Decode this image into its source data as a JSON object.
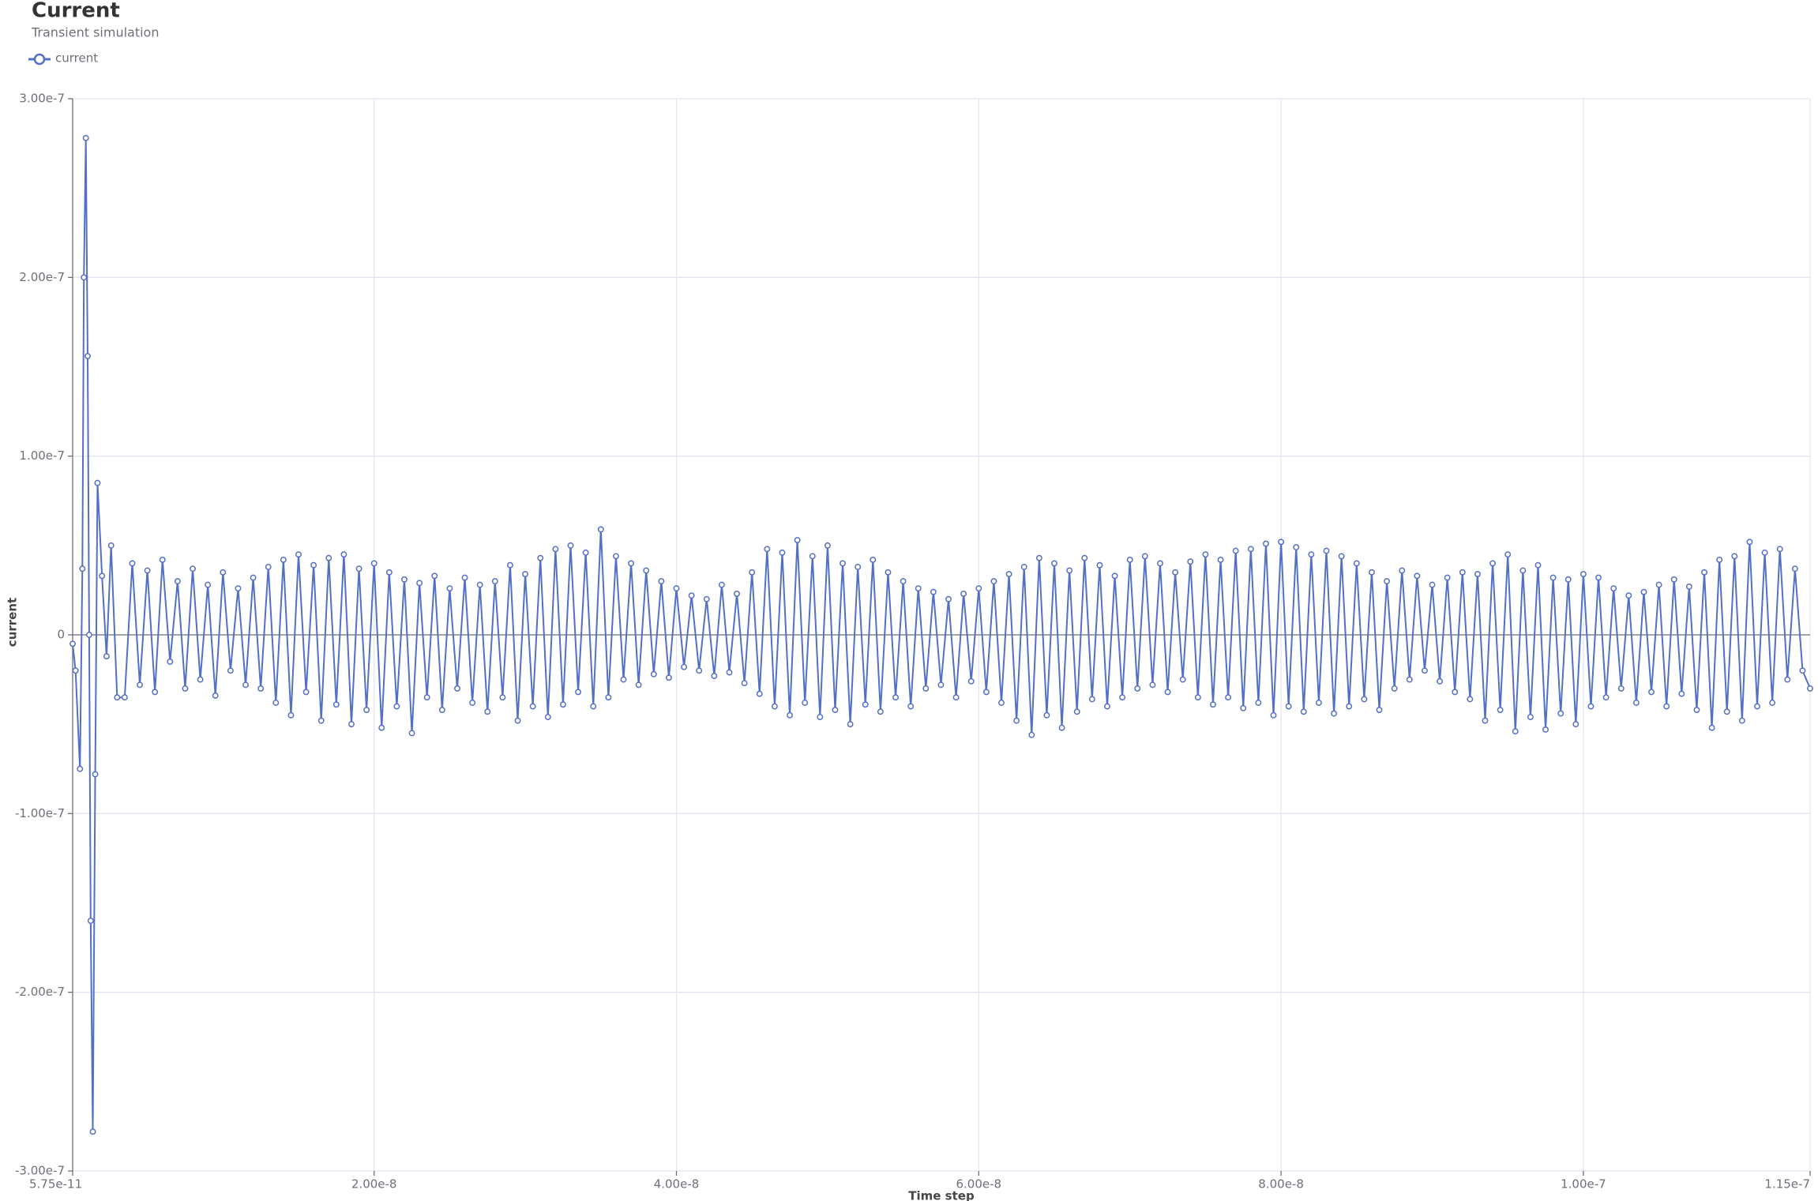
{
  "chart_data": {
    "type": "line",
    "title": "Current",
    "subtitle": "Transient simulation",
    "x_label": "Time step",
    "y_label": "current",
    "xlim": [
      5.75e-11,
      1.15e-07
    ],
    "xticks": [
      {
        "value": 5.75e-11,
        "label": "5.75e-11"
      },
      {
        "value": 2e-08,
        "label": "2.00e-8"
      },
      {
        "value": 4e-08,
        "label": "4.00e-8"
      },
      {
        "value": 6e-08,
        "label": "6.00e-8"
      },
      {
        "value": 8e-08,
        "label": "8.00e-8"
      },
      {
        "value": 1e-07,
        "label": "1.00e-7"
      },
      {
        "value": 1.15e-07,
        "label": "1.15e-7"
      }
    ],
    "ylim": [
      -3e-07,
      3e-07
    ],
    "yticks": [
      {
        "value": -3e-07,
        "label": "-3.00e-7"
      },
      {
        "value": -2e-07,
        "label": "-2.00e-7"
      },
      {
        "value": -1e-07,
        "label": "-1.00e-7"
      },
      0,
      {
        "value": 1e-07,
        "label": "1.00e-7"
      },
      {
        "value": 2e-07,
        "label": "2.00e-7"
      },
      {
        "value": 3e-07,
        "label": "3.00e-7"
      }
    ],
    "grid": true,
    "x": [
      5.75e-11,
      2.5e-10,
      5.4e-10,
      7e-10,
      8e-10,
      9.3e-10,
      1.05e-09,
      1.15e-09,
      1.25e-09,
      1.39e-09,
      1.55e-09,
      1.7e-09,
      2e-09,
      2.3e-09,
      2.6e-09,
      3e-09,
      3.5e-09,
      4e-09,
      4.5e-09,
      5e-09,
      5.5e-09,
      6e-09,
      6.5e-09,
      7e-09,
      7.5e-09,
      8e-09,
      8.5e-09,
      9e-09,
      9.5e-09,
      1e-08,
      1.05e-08,
      1.1e-08,
      1.15e-08,
      1.2e-08,
      1.25e-08,
      1.3e-08,
      1.35e-08,
      1.4e-08,
      1.45e-08,
      1.5e-08,
      1.55e-08,
      1.6e-08,
      1.65e-08,
      1.7e-08,
      1.75e-08,
      1.8e-08,
      1.85e-08,
      1.9e-08,
      1.95e-08,
      2e-08,
      2.05e-08,
      2.1e-08,
      2.15e-08,
      2.2e-08,
      2.25e-08,
      2.3e-08,
      2.35e-08,
      2.4e-08,
      2.45e-08,
      2.5e-08,
      2.55e-08,
      2.6e-08,
      2.65e-08,
      2.7e-08,
      2.75e-08,
      2.8e-08,
      2.85e-08,
      2.9e-08,
      2.95e-08,
      3e-08,
      3.05e-08,
      3.1e-08,
      3.15e-08,
      3.2e-08,
      3.25e-08,
      3.3e-08,
      3.35e-08,
      3.4e-08,
      3.45e-08,
      3.5e-08,
      3.55e-08,
      3.6e-08,
      3.65e-08,
      3.7e-08,
      3.75e-08,
      3.8e-08,
      3.85e-08,
      3.9e-08,
      3.95e-08,
      4e-08,
      4.05e-08,
      4.1e-08,
      4.15e-08,
      4.2e-08,
      4.25e-08,
      4.3e-08,
      4.35e-08,
      4.4e-08,
      4.45e-08,
      4.5e-08,
      4.55e-08,
      4.6e-08,
      4.65e-08,
      4.7e-08,
      4.75e-08,
      4.8e-08,
      4.85e-08,
      4.9e-08,
      4.95e-08,
      5e-08,
      5.05e-08,
      5.1e-08,
      5.15e-08,
      5.2e-08,
      5.25e-08,
      5.3e-08,
      5.35e-08,
      5.4e-08,
      5.45e-08,
      5.5e-08,
      5.55e-08,
      5.6e-08,
      5.65e-08,
      5.7e-08,
      5.75e-08,
      5.8e-08,
      5.85e-08,
      5.9e-08,
      5.95e-08,
      6e-08,
      6.05e-08,
      6.1e-08,
      6.15e-08,
      6.2e-08,
      6.25e-08,
      6.3e-08,
      6.35e-08,
      6.4e-08,
      6.45e-08,
      6.5e-08,
      6.55e-08,
      6.6e-08,
      6.65e-08,
      6.7e-08,
      6.75e-08,
      6.8e-08,
      6.85e-08,
      6.9e-08,
      6.95e-08,
      7e-08,
      7.05e-08,
      7.1e-08,
      7.15e-08,
      7.2e-08,
      7.25e-08,
      7.3e-08,
      7.35e-08,
      7.4e-08,
      7.45e-08,
      7.5e-08,
      7.55e-08,
      7.6e-08,
      7.65e-08,
      7.7e-08,
      7.75e-08,
      7.8e-08,
      7.85e-08,
      7.9e-08,
      7.95e-08,
      8e-08,
      8.05e-08,
      8.1e-08,
      8.15e-08,
      8.2e-08,
      8.25e-08,
      8.3e-08,
      8.35e-08,
      8.4e-08,
      8.45e-08,
      8.5e-08,
      8.55e-08,
      8.6e-08,
      8.65e-08,
      8.7e-08,
      8.75e-08,
      8.8e-08,
      8.85e-08,
      8.9e-08,
      8.95e-08,
      9e-08,
      9.05e-08,
      9.1e-08,
      9.15e-08,
      9.2e-08,
      9.25e-08,
      9.3e-08,
      9.35e-08,
      9.4e-08,
      9.45e-08,
      9.5e-08,
      9.55e-08,
      9.6e-08,
      9.65e-08,
      9.7e-08,
      9.75e-08,
      9.8e-08,
      9.85e-08,
      9.9e-08,
      9.95e-08,
      1e-07,
      1.005e-07,
      1.01e-07,
      1.015e-07,
      1.02e-07,
      1.025e-07,
      1.03e-07,
      1.035e-07,
      1.04e-07,
      1.045e-07,
      1.05e-07,
      1.055e-07,
      1.06e-07,
      1.065e-07,
      1.07e-07,
      1.075e-07,
      1.08e-07,
      1.085e-07,
      1.09e-07,
      1.095e-07,
      1.1e-07,
      1.105e-07,
      1.11e-07,
      1.115e-07,
      1.12e-07,
      1.125e-07,
      1.13e-07,
      1.135e-07,
      1.14e-07,
      1.145e-07,
      1.15e-07
    ],
    "series": [
      {
        "name": "current",
        "color": "#5470c6",
        "values": [
          -5e-09,
          -2e-08,
          -7.5e-08,
          3.7e-08,
          2e-07,
          2.78e-07,
          1.56e-07,
          0,
          -1.6e-07,
          -2.78e-07,
          -7.8e-08,
          8.5e-08,
          3.3e-08,
          -1.2e-08,
          5e-08,
          -3.5e-08,
          -3.5e-08,
          4e-08,
          -2.8e-08,
          3.6e-08,
          -3.2e-08,
          4.2e-08,
          -1.5e-08,
          3e-08,
          -3e-08,
          3.7e-08,
          -2.5e-08,
          2.8e-08,
          -3.4e-08,
          3.5e-08,
          -2e-08,
          2.6e-08,
          -2.8e-08,
          3.2e-08,
          -3e-08,
          3.8e-08,
          -3.8e-08,
          4.2e-08,
          -4.5e-08,
          4.5e-08,
          -3.2e-08,
          3.9e-08,
          -4.8e-08,
          4.3e-08,
          -3.9e-08,
          4.5e-08,
          -5e-08,
          3.7e-08,
          -4.2e-08,
          4e-08,
          -5.2e-08,
          3.5e-08,
          -4e-08,
          3.1e-08,
          -5.5e-08,
          2.9e-08,
          -3.5e-08,
          3.3e-08,
          -4.2e-08,
          2.6e-08,
          -3e-08,
          3.2e-08,
          -3.8e-08,
          2.8e-08,
          -4.3e-08,
          3e-08,
          -3.5e-08,
          3.9e-08,
          -4.8e-08,
          3.4e-08,
          -4e-08,
          4.3e-08,
          -4.6e-08,
          4.8e-08,
          -3.9e-08,
          5e-08,
          -3.2e-08,
          4.6e-08,
          -4e-08,
          5.9e-08,
          -3.5e-08,
          4.4e-08,
          -2.5e-08,
          4e-08,
          -2.8e-08,
          3.6e-08,
          -2.2e-08,
          3e-08,
          -2.4e-08,
          2.6e-08,
          -1.8e-08,
          2.2e-08,
          -2e-08,
          2e-08,
          -2.3e-08,
          2.8e-08,
          -2.1e-08,
          2.3e-08,
          -2.7e-08,
          3.5e-08,
          -3.3e-08,
          4.8e-08,
          -4e-08,
          4.6e-08,
          -4.5e-08,
          5.3e-08,
          -3.8e-08,
          4.4e-08,
          -4.6e-08,
          5e-08,
          -4.2e-08,
          4e-08,
          -5e-08,
          3.8e-08,
          -3.9e-08,
          4.2e-08,
          -4.3e-08,
          3.5e-08,
          -3.5e-08,
          3e-08,
          -4e-08,
          2.6e-08,
          -3e-08,
          2.4e-08,
          -2.8e-08,
          2e-08,
          -3.5e-08,
          2.3e-08,
          -2.6e-08,
          2.6e-08,
          -3.2e-08,
          3e-08,
          -3.8e-08,
          3.4e-08,
          -4.8e-08,
          3.8e-08,
          -5.6e-08,
          4.3e-08,
          -4.5e-08,
          4e-08,
          -5.2e-08,
          3.6e-08,
          -4.3e-08,
          4.3e-08,
          -3.6e-08,
          3.9e-08,
          -4e-08,
          3.3e-08,
          -3.5e-08,
          4.2e-08,
          -3e-08,
          4.4e-08,
          -2.8e-08,
          4e-08,
          -3.2e-08,
          3.5e-08,
          -2.5e-08,
          4.1e-08,
          -3.5e-08,
          4.5e-08,
          -3.9e-08,
          4.2e-08,
          -3.5e-08,
          4.7e-08,
          -4.1e-08,
          4.8e-08,
          -3.8e-08,
          5.1e-08,
          -4.5e-08,
          5.2e-08,
          -4e-08,
          4.9e-08,
          -4.3e-08,
          4.5e-08,
          -3.8e-08,
          4.7e-08,
          -4.4e-08,
          4.4e-08,
          -4e-08,
          4e-08,
          -3.6e-08,
          3.5e-08,
          -4.2e-08,
          3e-08,
          -3e-08,
          3.6e-08,
          -2.5e-08,
          3.3e-08,
          -2e-08,
          2.8e-08,
          -2.6e-08,
          3.2e-08,
          -3.2e-08,
          3.5e-08,
          -3.6e-08,
          3.4e-08,
          -4.8e-08,
          4e-08,
          -4.2e-08,
          4.5e-08,
          -5.4e-08,
          3.6e-08,
          -4.6e-08,
          3.9e-08,
          -5.3e-08,
          3.2e-08,
          -4.4e-08,
          3.1e-08,
          -5e-08,
          3.4e-08,
          -4e-08,
          3.2e-08,
          -3.5e-08,
          2.6e-08,
          -3e-08,
          2.2e-08,
          -3.8e-08,
          2.4e-08,
          -3.2e-08,
          2.8e-08,
          -4e-08,
          3.1e-08,
          -3.3e-08,
          2.7e-08,
          -4.2e-08,
          3.5e-08,
          -5.2e-08,
          4.2e-08,
          -4.3e-08,
          4.4e-08,
          -4.8e-08,
          5.2e-08,
          -4e-08,
          4.6e-08,
          -3.8e-08,
          4.8e-08,
          -2.5e-08,
          3.7e-08,
          -2e-08,
          -3e-08
        ]
      }
    ]
  }
}
